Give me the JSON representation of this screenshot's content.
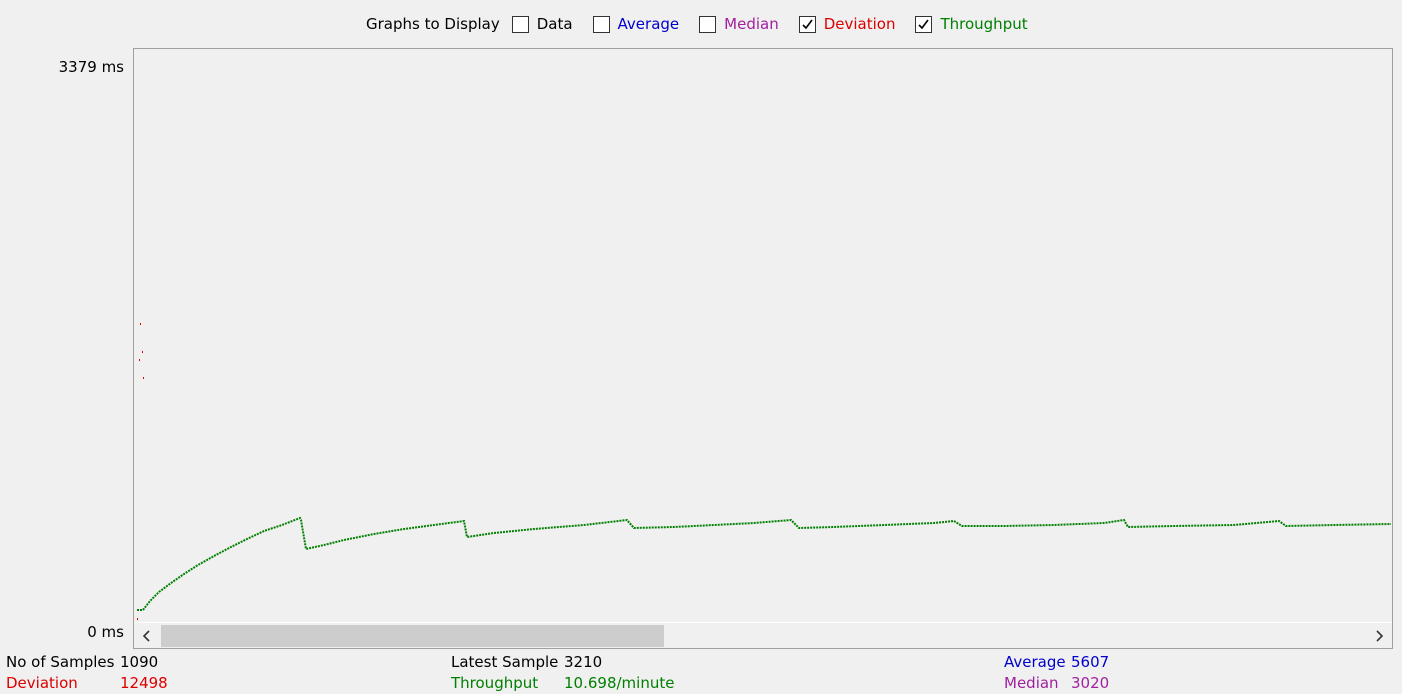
{
  "legend": {
    "title": "Graphs to Display",
    "items": [
      {
        "label": "Data",
        "checked": false,
        "color": "#000000"
      },
      {
        "label": "Average",
        "checked": false,
        "color": "#0000cc"
      },
      {
        "label": "Median",
        "checked": false,
        "color": "#a020a0"
      },
      {
        "label": "Deviation",
        "checked": true,
        "color": "#dd0000"
      },
      {
        "label": "Throughput",
        "checked": true,
        "color": "#008000"
      }
    ]
  },
  "axis": {
    "y_max_label": "3379  ms",
    "y_min_label": "0  ms"
  },
  "stats": {
    "samples_label": "No of Samples",
    "samples_value": "1090",
    "deviation_label": "Deviation",
    "deviation_value": "12498",
    "latest_label": "Latest Sample",
    "latest_value": "3210",
    "throughput_label": "Throughput",
    "throughput_value": "10.698/minute",
    "average_label": "Average",
    "average_value": "5607",
    "median_label": "Median",
    "median_value": "3020"
  },
  "colors": {
    "deviation": "#dd0000",
    "throughput": "#008000",
    "average": "#0000cc",
    "median": "#a020a0"
  }
}
